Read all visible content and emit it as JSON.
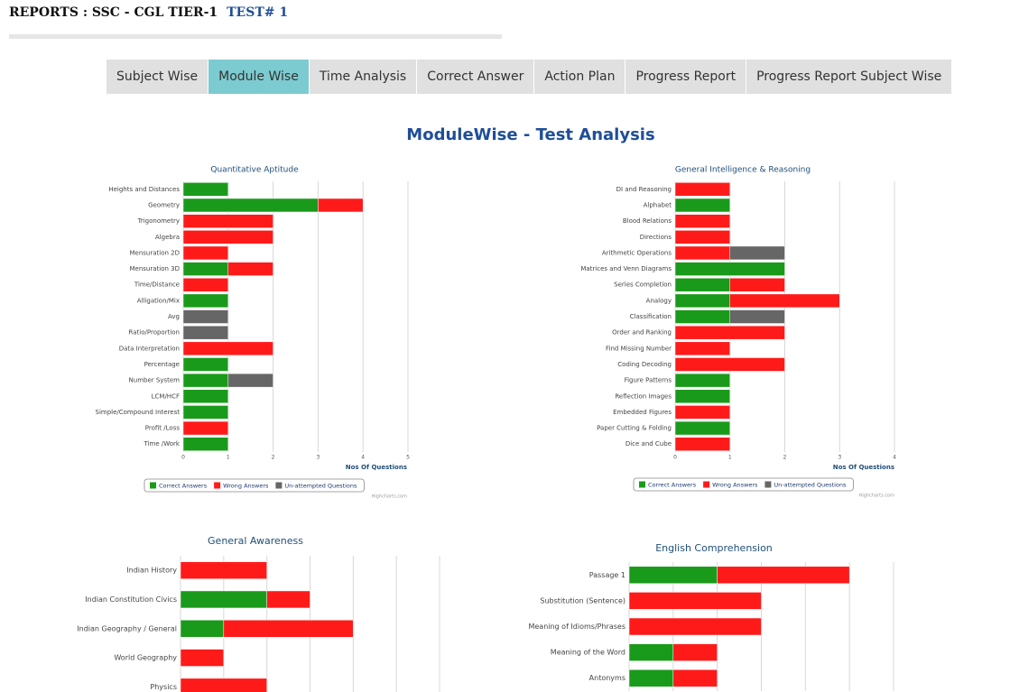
{
  "header": {
    "title": "REPORTS : SSC - CGL TIER-1",
    "test": "TEST# 1"
  },
  "tabs": {
    "items": [
      "Subject Wise",
      "Module Wise",
      "Time Analysis",
      "Correct Answer",
      "Action Plan",
      "Progress Report",
      "Progress Report Subject Wise"
    ],
    "active": 1
  },
  "heading": "ModuleWise - Test Analysis",
  "chart_data": [
    {
      "type": "bar",
      "title": "Quantitative Aptitude",
      "categories": [
        "Heights and Distances",
        "Geometry",
        "Trigonometry",
        "Algebra",
        "Mensuration 2D",
        "Mensuration 3D",
        "Time/Distance",
        "Alligation/Mix",
        "Avg",
        "Ratio/Proportion",
        "Data Interpretation",
        "Percentage",
        "Number System",
        "LCM/HCF",
        "Simple/Compound Interest",
        "Profit /Loss",
        "Time /Work"
      ],
      "series": [
        {
          "name": "Correct Answers",
          "color": "#1a9a1a",
          "values": [
            1,
            3,
            0,
            0,
            0,
            1,
            0,
            1,
            0,
            0,
            0,
            1,
            1,
            1,
            1,
            0,
            1
          ]
        },
        {
          "name": "Wrong Answers",
          "color": "#ff1a1a",
          "values": [
            0,
            1,
            2,
            2,
            1,
            1,
            1,
            0,
            0,
            0,
            2,
            0,
            0,
            0,
            0,
            1,
            0
          ]
        },
        {
          "name": "Un-attempted Questions",
          "color": "#666666",
          "values": [
            0,
            0,
            0,
            0,
            0,
            0,
            0,
            0,
            1,
            1,
            0,
            0,
            1,
            0,
            0,
            0,
            0
          ]
        }
      ],
      "xlim": [
        0,
        5
      ],
      "xticks": [
        0,
        1,
        2,
        3,
        4,
        5
      ],
      "x_label": "Nos Of Questions",
      "credits": "Highcharts.com"
    },
    {
      "type": "bar",
      "title": "General Intelligence & Reasoning",
      "categories": [
        "DI and Reasoning",
        "Alphabet",
        "Blood Relations",
        "Directions",
        "Arithmetic Operations",
        "Matrices and Venn Diagrams",
        "Series Completion",
        "Analogy",
        "Classification",
        "Order and Ranking",
        "Find Missing Number",
        "Coding Decoding",
        "Figure Patterns",
        "Reflection Images",
        "Embedded Figures",
        "Paper Cutting & Folding",
        "Dice and Cube"
      ],
      "series": [
        {
          "name": "Correct Answers",
          "color": "#1a9a1a",
          "values": [
            0,
            1,
            0,
            0,
            0,
            2,
            1,
            1,
            1,
            0,
            0,
            0,
            1,
            1,
            0,
            1,
            0
          ]
        },
        {
          "name": "Wrong Answers",
          "color": "#ff1a1a",
          "values": [
            1,
            0,
            1,
            1,
            1,
            0,
            1,
            2,
            0,
            2,
            1,
            2,
            0,
            0,
            1,
            0,
            1
          ]
        },
        {
          "name": "Un-attempted Questions",
          "color": "#666666",
          "values": [
            0,
            0,
            0,
            0,
            1,
            0,
            0,
            0,
            1,
            0,
            0,
            0,
            0,
            0,
            0,
            0,
            0
          ]
        }
      ],
      "xlim": [
        0,
        4
      ],
      "xticks": [
        0,
        1,
        2,
        3,
        4
      ],
      "x_label": "Nos Of Questions",
      "credits": "Highcharts.com"
    },
    {
      "type": "bar",
      "title": "General Awareness",
      "categories": [
        "Indian History",
        "Indian Constitution Civics",
        "Indian Geography / General",
        "World Geography",
        "Physics"
      ],
      "series": [
        {
          "color": "#1a9a1a",
          "values": [
            0,
            2,
            1,
            0,
            0
          ]
        },
        {
          "color": "#ff1a1a",
          "values": [
            2,
            1,
            3,
            1,
            2
          ]
        }
      ],
      "xlim": [
        0,
        6
      ],
      "grid_values": [
        0,
        1,
        2,
        3,
        4,
        5,
        6
      ]
    },
    {
      "type": "bar",
      "title": "English Comprehension",
      "categories": [
        "Passage 1",
        "Substitution (Sentence)",
        "Meaning of Idioms/Phrases",
        "Meaning of the Word",
        "Antonyms"
      ],
      "series": [
        {
          "color": "#1a9a1a",
          "values": [
            2,
            0,
            0,
            1,
            1
          ]
        },
        {
          "color": "#ff1a1a",
          "values": [
            3,
            3,
            3,
            1,
            1
          ]
        }
      ],
      "xlim": [
        0,
        6
      ],
      "grid_values": [
        0,
        1,
        2,
        3,
        4,
        5,
        6
      ]
    }
  ]
}
